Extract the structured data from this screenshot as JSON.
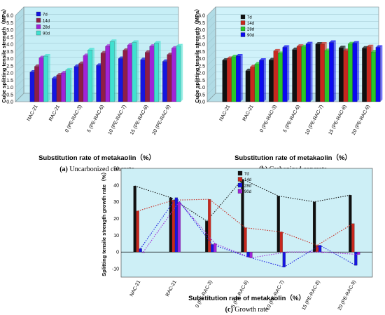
{
  "chart_data": [
    {
      "type": "bar",
      "caption_letter": "(a)",
      "caption_text": "Uncarbonized concrete",
      "ylabel": "Cube splitting tensile strength（MPa）",
      "xlabel": "Substitution rate of metakaolin（%）",
      "ylim": [
        0,
        6
      ],
      "yticks": [
        "0.0",
        "0.5",
        "1.0",
        "1.5",
        "2.0",
        "2.5",
        "3.0",
        "3.5",
        "4.0",
        "4.5",
        "5.0",
        "5.5",
        "6.0"
      ],
      "categories": [
        "NAC-21",
        "RAC-21",
        "0 (PE-RAC-3)",
        "5 (PE-RAC-6)",
        "10 (PE-RAC-7)",
        "15 (PE-RAC-8)",
        "20 (PE-RAC-9)"
      ],
      "legend": "top-left",
      "series": [
        {
          "name": "7d",
          "color": "#1515e0",
          "values": [
            2.05,
            1.62,
            2.45,
            2.52,
            3.0,
            2.92,
            2.8
          ]
        },
        {
          "name": "14d",
          "color": "#8e1e46",
          "values": [
            2.45,
            1.85,
            2.65,
            3.38,
            3.57,
            3.43,
            3.27
          ]
        },
        {
          "name": "28d",
          "color": "#a024d8",
          "values": [
            3.05,
            2.0,
            3.2,
            3.85,
            3.93,
            3.85,
            3.72
          ]
        },
        {
          "name": "90d",
          "color": "#40e0d0",
          "values": [
            3.17,
            2.2,
            3.6,
            4.18,
            4.12,
            4.07,
            3.87
          ]
        }
      ]
    },
    {
      "type": "bar",
      "caption_letter": "(b)",
      "caption_text": "Carbonized concrete",
      "ylabel": "Cube splitting tensile strength（MPa）",
      "xlabel": "Substitution rate of metakaolin（%）",
      "ylim": [
        0,
        6
      ],
      "yticks": [
        "0.0",
        "0.5",
        "1.0",
        "1.5",
        "2.0",
        "2.5",
        "3.0",
        "3.5",
        "4.0",
        "4.5",
        "5.0",
        "5.5",
        "6.0"
      ],
      "categories": [
        "NAC-21",
        "RAC-21",
        "0 (PE-RAC-3)",
        "5 (PE-RAC-6)",
        "10 (PE-RAC-7)",
        "15 (PE-RAC-8)",
        "20 (PE-RAC-9)"
      ],
      "legend": "top-left",
      "series": [
        {
          "name": "7d",
          "color": "#101010",
          "values": [
            2.88,
            2.15,
            2.9,
            3.62,
            4.0,
            3.75,
            3.72
          ]
        },
        {
          "name": "14d",
          "color": "#c8281e",
          "values": [
            3.0,
            2.42,
            3.52,
            3.85,
            4.0,
            3.55,
            3.82
          ]
        },
        {
          "name": "28d",
          "color": "#28c828",
          "values": [
            3.12,
            2.62,
            3.35,
            3.82,
            3.55,
            4.02,
            3.45
          ]
        },
        {
          "name": "90d",
          "color": "#0a0af0",
          "values": [
            3.17,
            2.88,
            3.78,
            4.02,
            4.12,
            4.07,
            3.78
          ]
        }
      ]
    },
    {
      "type": "bar",
      "caption_letter": "(c)",
      "caption_text": "Growth rate",
      "ylabel": "Splitting tensile strength growth rate（%）",
      "xlabel": "Substitution rate of metakaolin（%）",
      "ylim": [
        -15,
        50
      ],
      "yticks": [
        "-10",
        "0",
        "10",
        "20",
        "30",
        "40",
        "50"
      ],
      "ytick_values": [
        -10,
        0,
        10,
        20,
        30,
        40,
        50
      ],
      "categories": [
        "NAC-21",
        "RAC-21",
        "0 (PE-RAC-3)",
        "5 (PE-RAC-6)",
        "10 (PE-RAC-7)",
        "15 (PE-RAC-8)",
        "20 (PE-RAC-9)"
      ],
      "legend": "top-right",
      "series": [
        {
          "name": "7d",
          "color": "#101010",
          "values": [
            39.5,
            32.5,
            18.5,
            43.5,
            33.5,
            30.0,
            34.0
          ]
        },
        {
          "name": "14d",
          "color": "#c8281e",
          "values": [
            24.5,
            31.0,
            31.5,
            14.5,
            12.0,
            4.0,
            17.0
          ]
        },
        {
          "name": "28d",
          "color": "#1515e0",
          "values": [
            2.0,
            32.5,
            4.5,
            -3.0,
            -9.0,
            4.0,
            -8.0
          ]
        },
        {
          "name": "90d",
          "color": "#a024d8",
          "values": [
            0.0,
            30.0,
            5.0,
            -3.5,
            0.0,
            0.0,
            -1.5
          ]
        }
      ]
    }
  ]
}
